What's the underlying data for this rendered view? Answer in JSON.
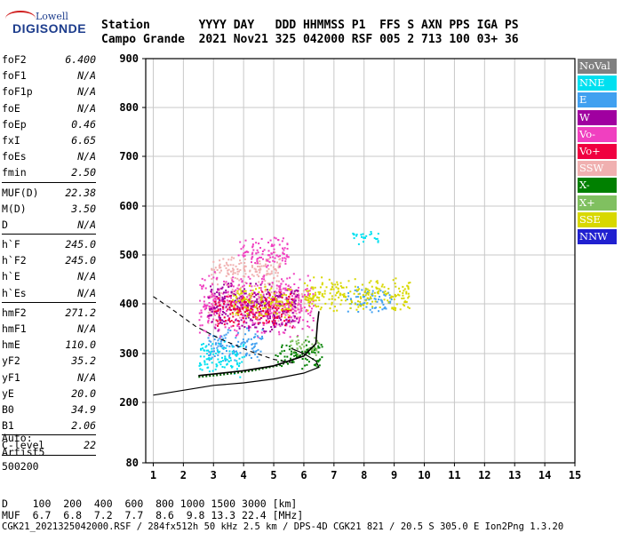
{
  "logo": {
    "brand_top": "Lowell",
    "brand_main": "DIGISONDE"
  },
  "header": {
    "row1": "Station       YYYY DAY   DDD HHMMSS P1  FFS S AXN PPS IGA PS",
    "row2": "Campo Grande  2021 Nov21 325 042000 RSF 005 2 713 100 03+ 36"
  },
  "params": [
    {
      "k": "foF2",
      "v": "6.400"
    },
    {
      "k": "foF1",
      "v": "N/A"
    },
    {
      "k": "foF1p",
      "v": "N/A"
    },
    {
      "k": "foE",
      "v": "N/A"
    },
    {
      "k": "foEp",
      "v": "0.46"
    },
    {
      "k": "fxI",
      "v": "6.65"
    },
    {
      "k": "foEs",
      "v": "N/A"
    },
    {
      "k": "fmin",
      "v": "2.50"
    },
    {
      "sep": true
    },
    {
      "k": "MUF(D)",
      "v": "22.38"
    },
    {
      "k": "M(D)",
      "v": "3.50"
    },
    {
      "k": "D",
      "v": "N/A"
    },
    {
      "sep": true
    },
    {
      "k": "h`F",
      "v": "245.0"
    },
    {
      "k": "h`F2",
      "v": "245.0"
    },
    {
      "k": "h`E",
      "v": "N/A"
    },
    {
      "k": "h`Es",
      "v": "N/A"
    },
    {
      "sep": true
    },
    {
      "k": "hmF2",
      "v": "271.2"
    },
    {
      "k": "hmF1",
      "v": "N/A"
    },
    {
      "k": "hmE",
      "v": "110.0"
    },
    {
      "k": "yF2",
      "v": "35.2"
    },
    {
      "k": "yF1",
      "v": "N/A"
    },
    {
      "k": "yE",
      "v": "20.0"
    },
    {
      "k": "B0",
      "v": "34.9"
    },
    {
      "k": "B1",
      "v": "2.06"
    },
    {
      "sep": true
    },
    {
      "k": "C-level",
      "v": "22"
    },
    {
      "sep": true
    }
  ],
  "auto": {
    "l1": "Auto:",
    "l2": "Artist5",
    "l3": "500200"
  },
  "bottom": {
    "d_row": "D    100  200  400  600  800 1000 1500 3000 [km]",
    "muf_row": "MUF  6.7  6.8  7.2  7.7  8.6  9.8 13.3 22.4 [MHz]",
    "footer": "CGK21_2021325042000.RSF / 284fx512h 50 kHz 2.5 km / DPS-4D CGK21 821 / 20.5 S 305.0 E Ion2Png 1.3.20"
  },
  "legend": [
    {
      "label": "NoVal",
      "color": "#808080"
    },
    {
      "label": "NNE",
      "color": "#00e0f0"
    },
    {
      "label": "E",
      "color": "#40a0f0"
    },
    {
      "label": "W",
      "color": "#a000a0"
    },
    {
      "label": "Vo-",
      "color": "#f040c0"
    },
    {
      "label": "Vo+",
      "color": "#f00040"
    },
    {
      "label": "SSW",
      "color": "#f0b0b0"
    },
    {
      "label": "X-",
      "color": "#008000"
    },
    {
      "label": "X+",
      "color": "#80c060"
    },
    {
      "label": "SSE",
      "color": "#d8d800"
    },
    {
      "label": "NNW",
      "color": "#2020d0"
    }
  ],
  "chart_data": {
    "type": "scatter",
    "xlabel": "",
    "ylabel": "",
    "xlim": [
      0.75,
      15
    ],
    "ylim": [
      80,
      900
    ],
    "x_ticks": [
      1,
      2,
      3,
      4,
      5,
      6,
      7,
      8,
      9,
      10,
      11,
      12,
      13,
      14,
      15
    ],
    "y_ticks": [
      80,
      200,
      300,
      400,
      500,
      600,
      700,
      800,
      900
    ],
    "grid": true,
    "series": [
      {
        "color": "#f0b0b0",
        "clusters": [
          {
            "x": [
              2.9,
              5.2
            ],
            "y": [
              430,
              510
            ]
          },
          {
            "x": [
              2.8,
              6.0
            ],
            "y": [
              360,
              440
            ]
          }
        ]
      },
      {
        "color": "#f040c0",
        "clusters": [
          {
            "x": [
              2.5,
              6.3
            ],
            "y": [
              330,
              470
            ]
          },
          {
            "x": [
              3.8,
              5.5
            ],
            "y": [
              470,
              540
            ]
          }
        ]
      },
      {
        "color": "#a000a0",
        "clusters": [
          {
            "x": [
              2.8,
              5.8
            ],
            "y": [
              340,
              450
            ]
          }
        ]
      },
      {
        "color": "#f00040",
        "clusters": [
          {
            "x": [
              3.0,
              5.6
            ],
            "y": [
              350,
              430
            ]
          }
        ]
      },
      {
        "color": "#40a0f0",
        "clusters": [
          {
            "x": [
              2.8,
              4.6
            ],
            "y": [
              280,
              360
            ]
          },
          {
            "x": [
              7.4,
              8.9
            ],
            "y": [
              380,
              440
            ]
          }
        ]
      },
      {
        "color": "#00e0f0",
        "clusters": [
          {
            "x": [
              7.6,
              8.5
            ],
            "y": [
              520,
              555
            ]
          },
          {
            "x": [
              2.5,
              4.0
            ],
            "y": [
              250,
              330
            ]
          }
        ]
      },
      {
        "color": "#d8d800",
        "clusters": [
          {
            "x": [
              6.0,
              9.5
            ],
            "y": [
              380,
              460
            ]
          },
          {
            "x": [
              3.6,
              5.6
            ],
            "y": [
              370,
              440
            ]
          }
        ]
      },
      {
        "color": "#008000",
        "clusters": [
          {
            "x": [
              5.0,
              6.6
            ],
            "y": [
              270,
              330
            ]
          }
        ]
      },
      {
        "color": "#80c060",
        "clusters": [
          {
            "x": [
              5.5,
              6.5
            ],
            "y": [
              290,
              340
            ]
          }
        ]
      }
    ],
    "curves": {
      "trace_o": [
        [
          2.5,
          255
        ],
        [
          3.0,
          258
        ],
        [
          4.0,
          265
        ],
        [
          5.0,
          275
        ],
        [
          6.0,
          295
        ],
        [
          6.4,
          320
        ],
        [
          6.45,
          360
        ],
        [
          6.5,
          385
        ]
      ],
      "trace_x": [
        [
          2.5,
          252
        ],
        [
          3.2,
          256
        ],
        [
          4.2,
          264
        ],
        [
          5.2,
          276
        ],
        [
          5.8,
          292
        ],
        [
          6.4,
          318
        ]
      ],
      "profile": [
        [
          1.0,
          215
        ],
        [
          2.0,
          225
        ],
        [
          3.0,
          235
        ],
        [
          4.0,
          240
        ],
        [
          5.0,
          248
        ],
        [
          6.0,
          260
        ],
        [
          6.5,
          272
        ],
        [
          6.4,
          285
        ],
        [
          6.0,
          300
        ],
        [
          5.6,
          310
        ]
      ],
      "dashed": [
        [
          1.0,
          415
        ],
        [
          1.6,
          390
        ],
        [
          2.4,
          355
        ],
        [
          3.2,
          330
        ],
        [
          4.2,
          305
        ],
        [
          5.0,
          288
        ],
        [
          5.7,
          280
        ]
      ]
    }
  }
}
